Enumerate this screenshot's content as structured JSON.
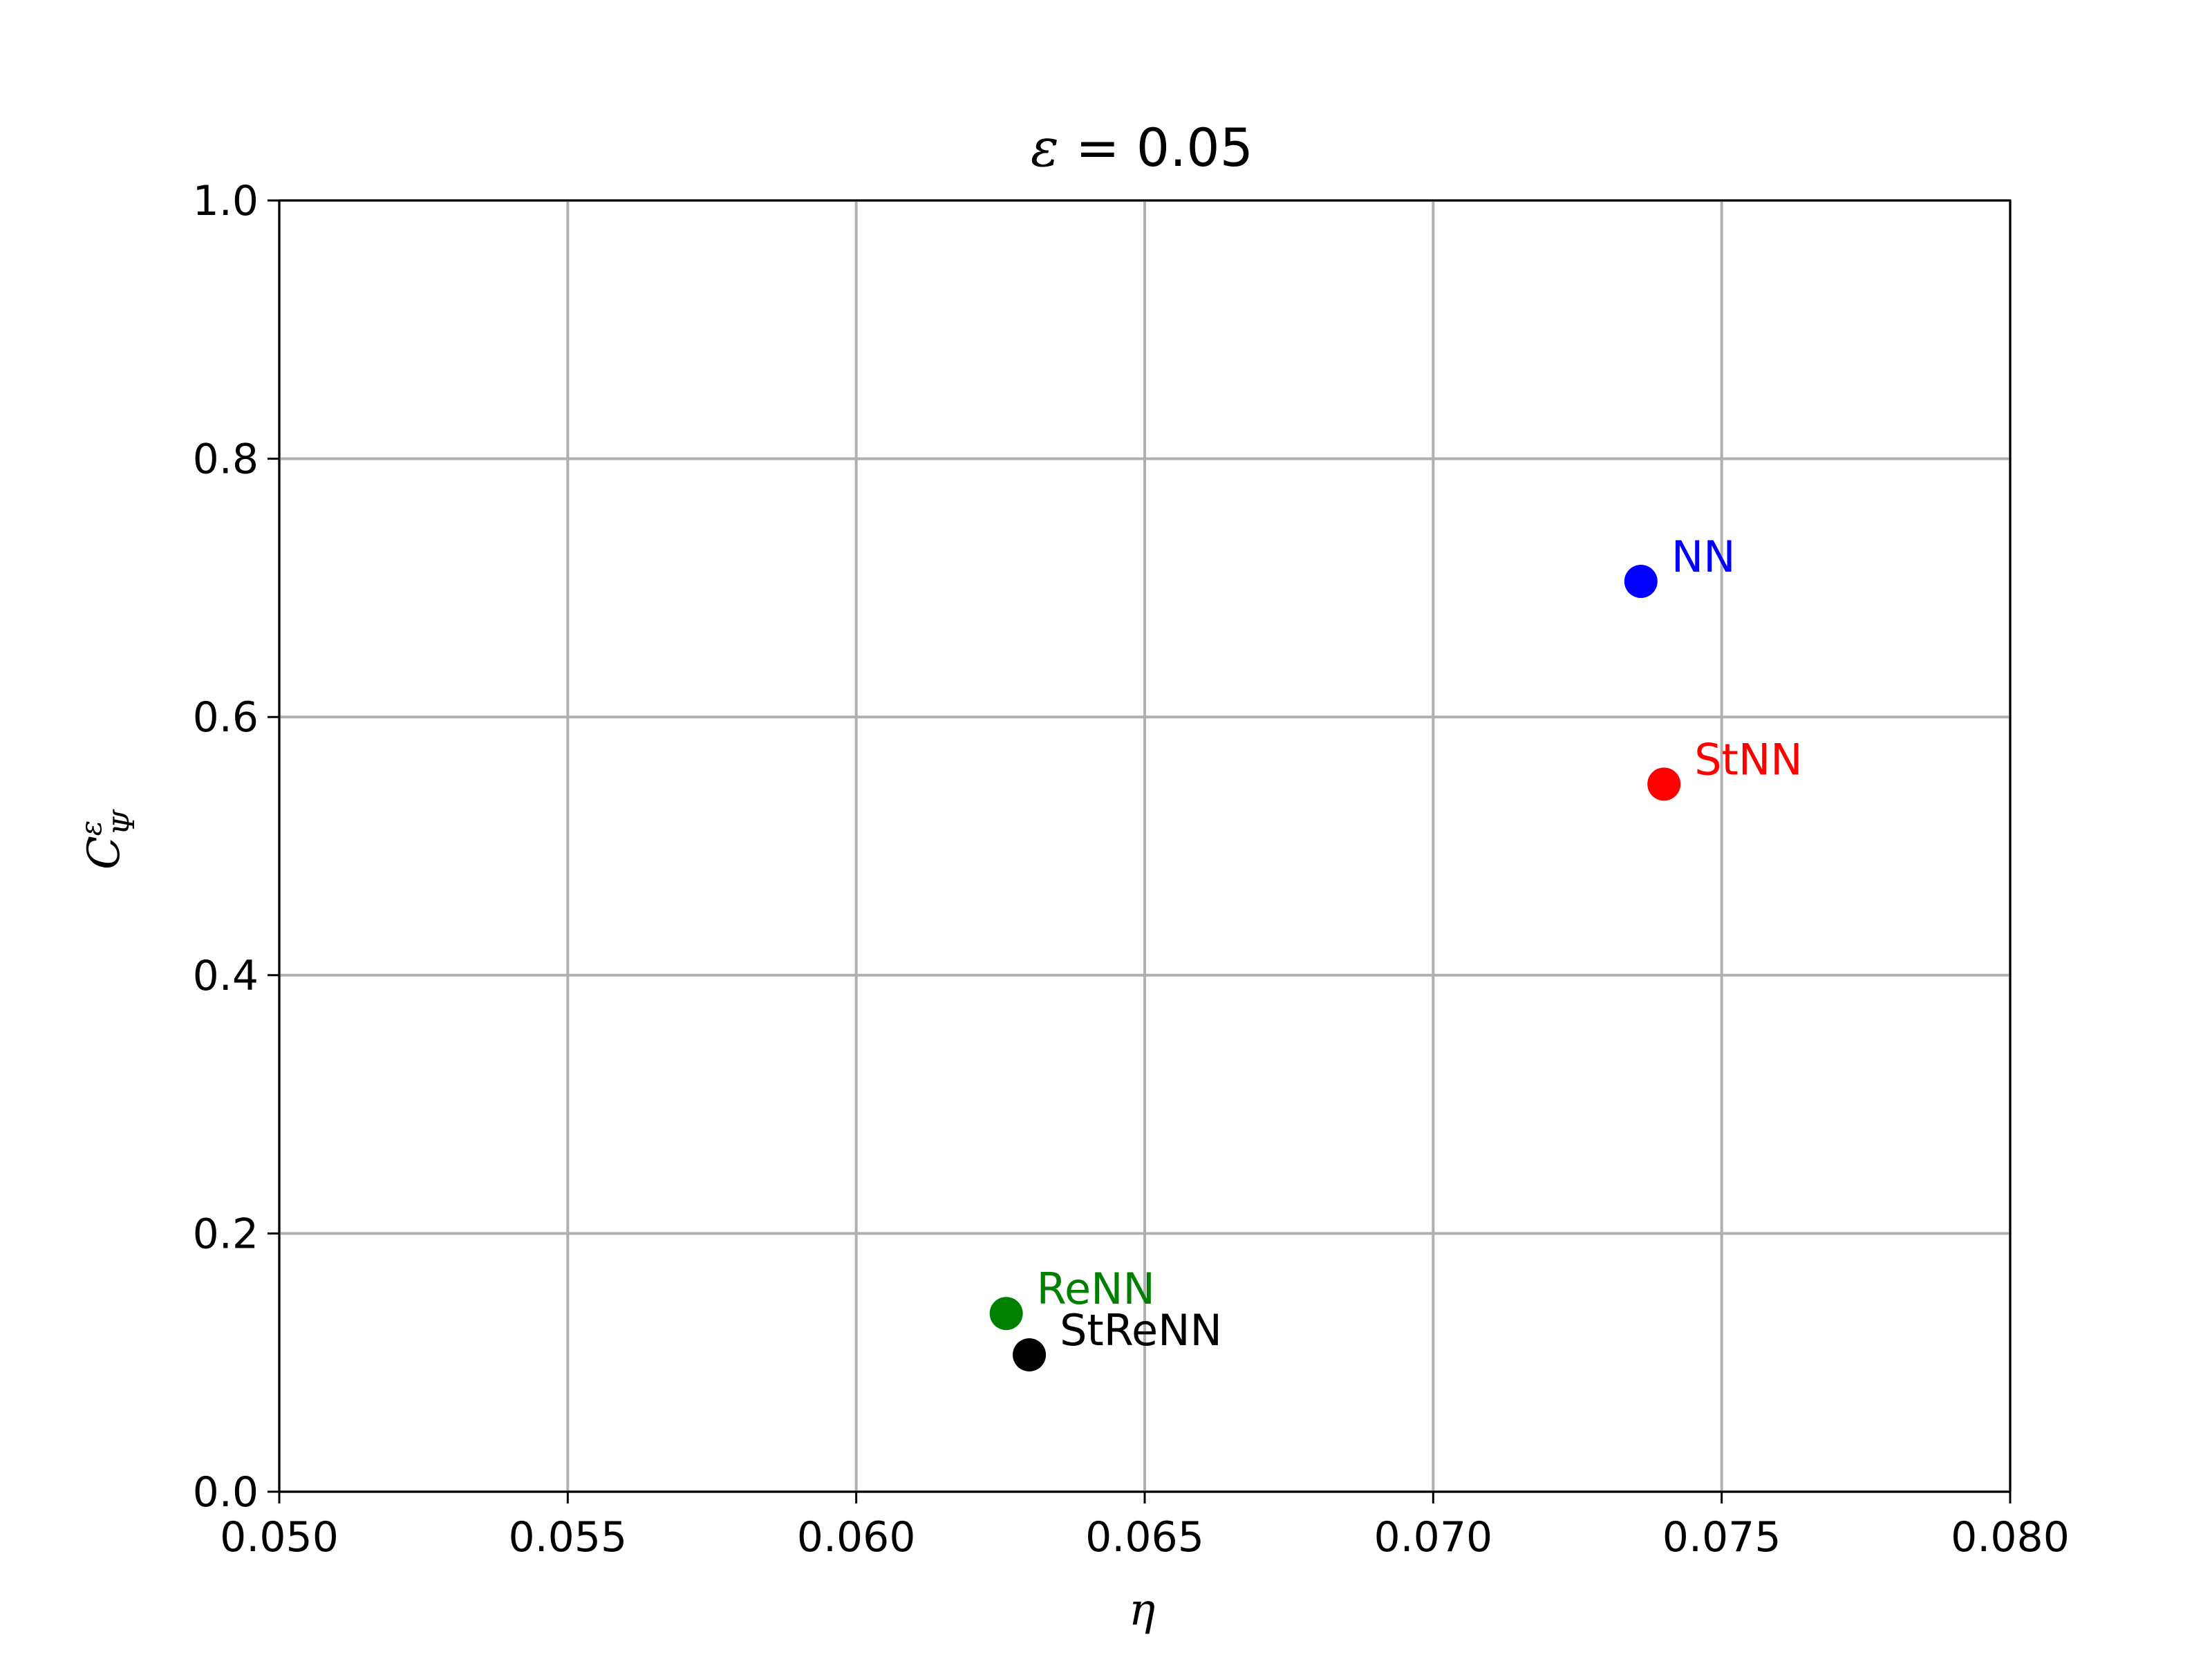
{
  "chart_data": {
    "type": "scatter",
    "title": {
      "symbol": "ε",
      "rest": " = 0.05"
    },
    "xlabel": "η",
    "ylabel": {
      "base": "C",
      "superscript": "ε",
      "subscript": "Ψ"
    },
    "xlim": [
      0.05,
      0.08
    ],
    "ylim": [
      0.0,
      1.0
    ],
    "xticks": [
      0.05,
      0.055,
      0.06,
      0.065,
      0.07,
      0.075,
      0.08
    ],
    "xtick_labels": [
      "0.050",
      "0.055",
      "0.060",
      "0.065",
      "0.070",
      "0.075",
      "0.080"
    ],
    "yticks": [
      0.0,
      0.2,
      0.4,
      0.6,
      0.8,
      1.0
    ],
    "ytick_labels": [
      "0.0",
      "0.2",
      "0.4",
      "0.6",
      "0.8",
      "1.0"
    ],
    "grid": true,
    "legend": "none",
    "points": [
      {
        "label": "NN",
        "x": 0.0736,
        "y": 0.705,
        "color": "#0000ff"
      },
      {
        "label": "StNN",
        "x": 0.074,
        "y": 0.548,
        "color": "#ff0000"
      },
      {
        "label": "ReNN",
        "x": 0.0626,
        "y": 0.138,
        "color": "#008000"
      },
      {
        "label": "StReNN",
        "x": 0.063,
        "y": 0.106,
        "color": "#000000"
      }
    ]
  }
}
